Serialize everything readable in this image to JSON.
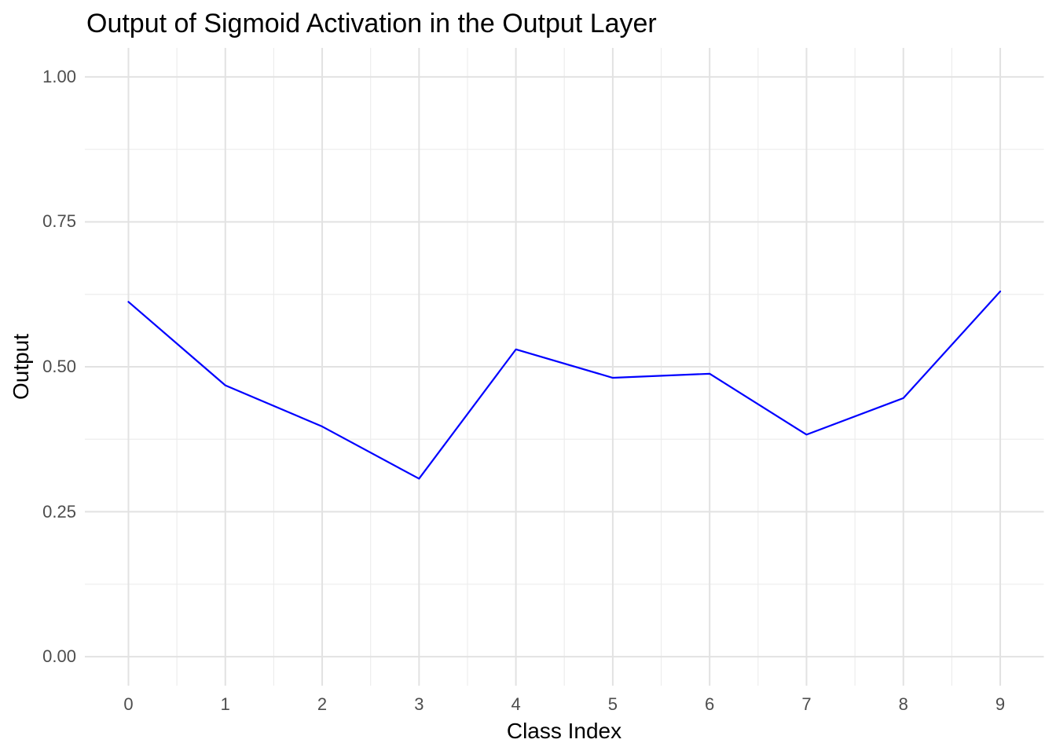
{
  "page": {
    "background": "#ffffff"
  },
  "chart_data": {
    "type": "line",
    "title": "Output of Sigmoid Activation in the Output Layer",
    "xlabel": "Class Index",
    "ylabel": "Output",
    "x": [
      0,
      1,
      2,
      3,
      4,
      5,
      6,
      7,
      8,
      9
    ],
    "y": [
      0.612,
      0.468,
      0.397,
      0.307,
      0.53,
      0.481,
      0.488,
      0.383,
      0.446,
      0.63
    ],
    "xlim": [
      -0.45,
      9.45
    ],
    "ylim": [
      -0.05,
      1.05
    ],
    "x_major_ticks": [
      0,
      1,
      2,
      3,
      4,
      5,
      6,
      7,
      8,
      9
    ],
    "x_tick_labels": [
      "0",
      "1",
      "2",
      "3",
      "4",
      "5",
      "6",
      "7",
      "8",
      "9"
    ],
    "x_minor_ticks": [
      0.5,
      1.5,
      2.5,
      3.5,
      4.5,
      5.5,
      6.5,
      7.5,
      8.5
    ],
    "y_major_ticks": [
      0,
      0.25,
      0.5,
      0.75,
      1.0
    ],
    "y_tick_labels": [
      "0.00",
      "0.25",
      "0.50",
      "0.75",
      "1.00"
    ],
    "y_minor_ticks": [
      0.125,
      0.375,
      0.625,
      0.875
    ],
    "grid": "major+minor",
    "legend": "none",
    "colors": {
      "line": "#0000FF",
      "grid_major": "#e2e2e2",
      "grid_minor": "#ededed",
      "tick_label": "#4d4d4d",
      "title": "#000000",
      "axis_title": "#000000",
      "background": "#ffffff"
    }
  }
}
